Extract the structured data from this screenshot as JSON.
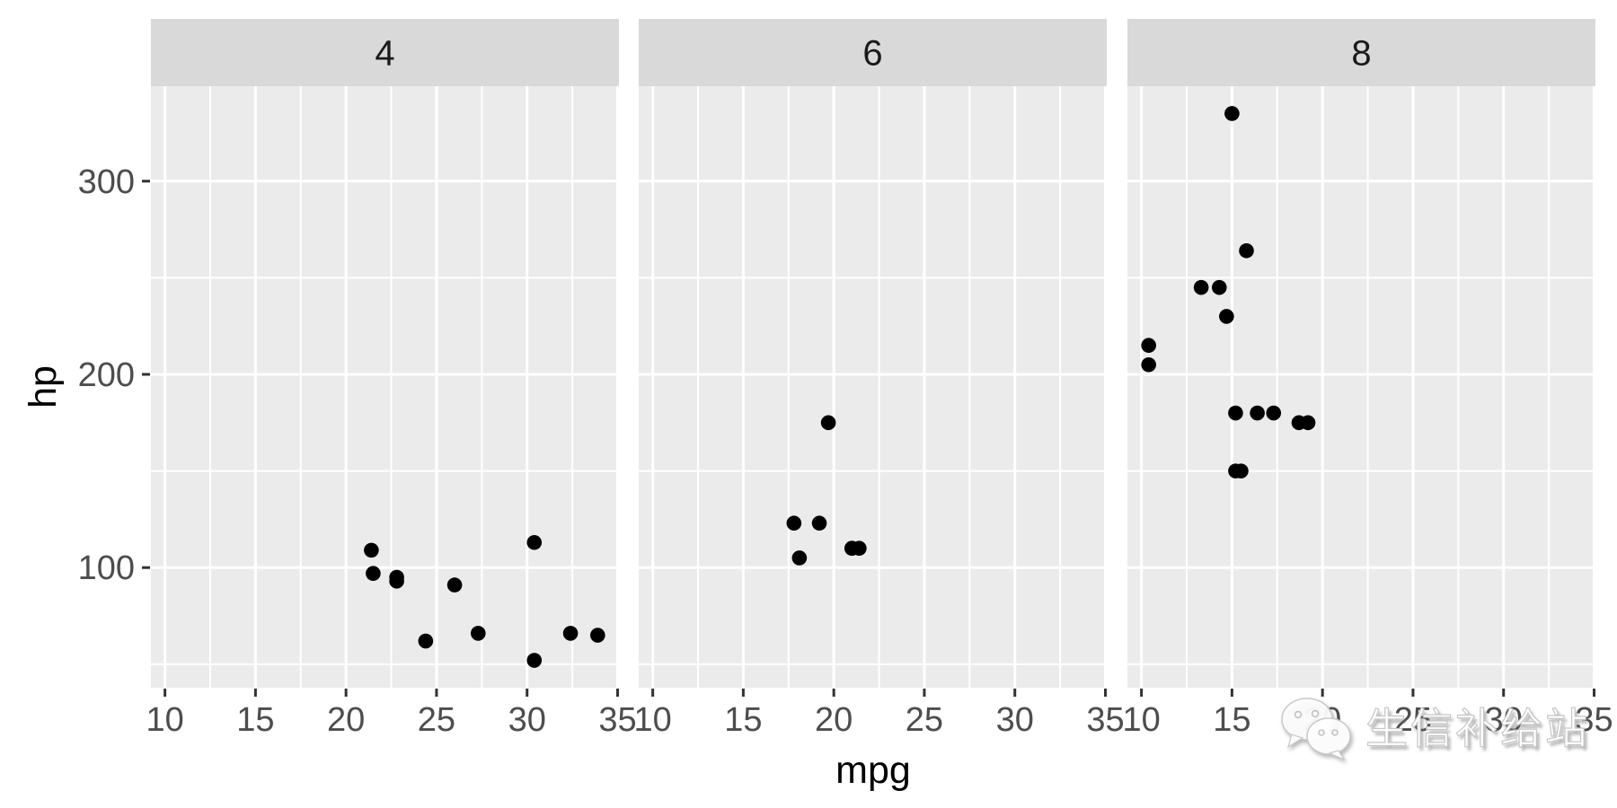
{
  "watermark": {
    "text": "生信补给站",
    "icon": "wechat-chat-bubbles-icon"
  },
  "chart_data": {
    "type": "scatter",
    "title": "",
    "xlabel": "mpg",
    "ylabel": "hp",
    "facet_variable_levels": [
      "4",
      "6",
      "8"
    ],
    "series": [
      {
        "name": "4",
        "points": [
          [
            22.8,
            93
          ],
          [
            24.4,
            62
          ],
          [
            22.8,
            95
          ],
          [
            32.4,
            66
          ],
          [
            30.4,
            52
          ],
          [
            33.9,
            65
          ],
          [
            21.5,
            97
          ],
          [
            27.3,
            66
          ],
          [
            26.0,
            91
          ],
          [
            30.4,
            113
          ],
          [
            21.4,
            109
          ]
        ]
      },
      {
        "name": "6",
        "points": [
          [
            21.0,
            110
          ],
          [
            21.0,
            110
          ],
          [
            21.4,
            110
          ],
          [
            18.1,
            105
          ],
          [
            19.2,
            123
          ],
          [
            17.8,
            123
          ],
          [
            19.7,
            175
          ]
        ]
      },
      {
        "name": "8",
        "points": [
          [
            18.7,
            175
          ],
          [
            14.3,
            245
          ],
          [
            16.4,
            180
          ],
          [
            17.3,
            180
          ],
          [
            15.2,
            180
          ],
          [
            10.4,
            205
          ],
          [
            10.4,
            215
          ],
          [
            14.7,
            230
          ],
          [
            15.5,
            150
          ],
          [
            15.2,
            150
          ],
          [
            13.3,
            245
          ],
          [
            19.2,
            175
          ],
          [
            15.8,
            264
          ],
          [
            15.0,
            335
          ]
        ]
      }
    ],
    "x_ticks": [
      10,
      15,
      20,
      25,
      30,
      35
    ],
    "y_ticks": [
      100,
      200,
      300
    ],
    "x_minor_ticks": [
      12.5,
      17.5,
      22.5,
      27.5,
      32.5
    ],
    "y_minor_ticks": [
      50,
      150,
      250
    ],
    "xlim": [
      9.225,
      35.075
    ],
    "ylim": [
      37.85,
      349.15
    ],
    "grid": true,
    "legend": "none",
    "colors": {
      "panel_background": "#EBEBEB",
      "strip_background": "#D9D9D9",
      "gridline": "#FFFFFF",
      "point": "#000000",
      "axis_text": "#4D4D4D",
      "strip_text": "#1A1A1A",
      "tick_mark": "#333333",
      "axis_title": "#000000",
      "plot_background": "#FFFFFF"
    }
  }
}
